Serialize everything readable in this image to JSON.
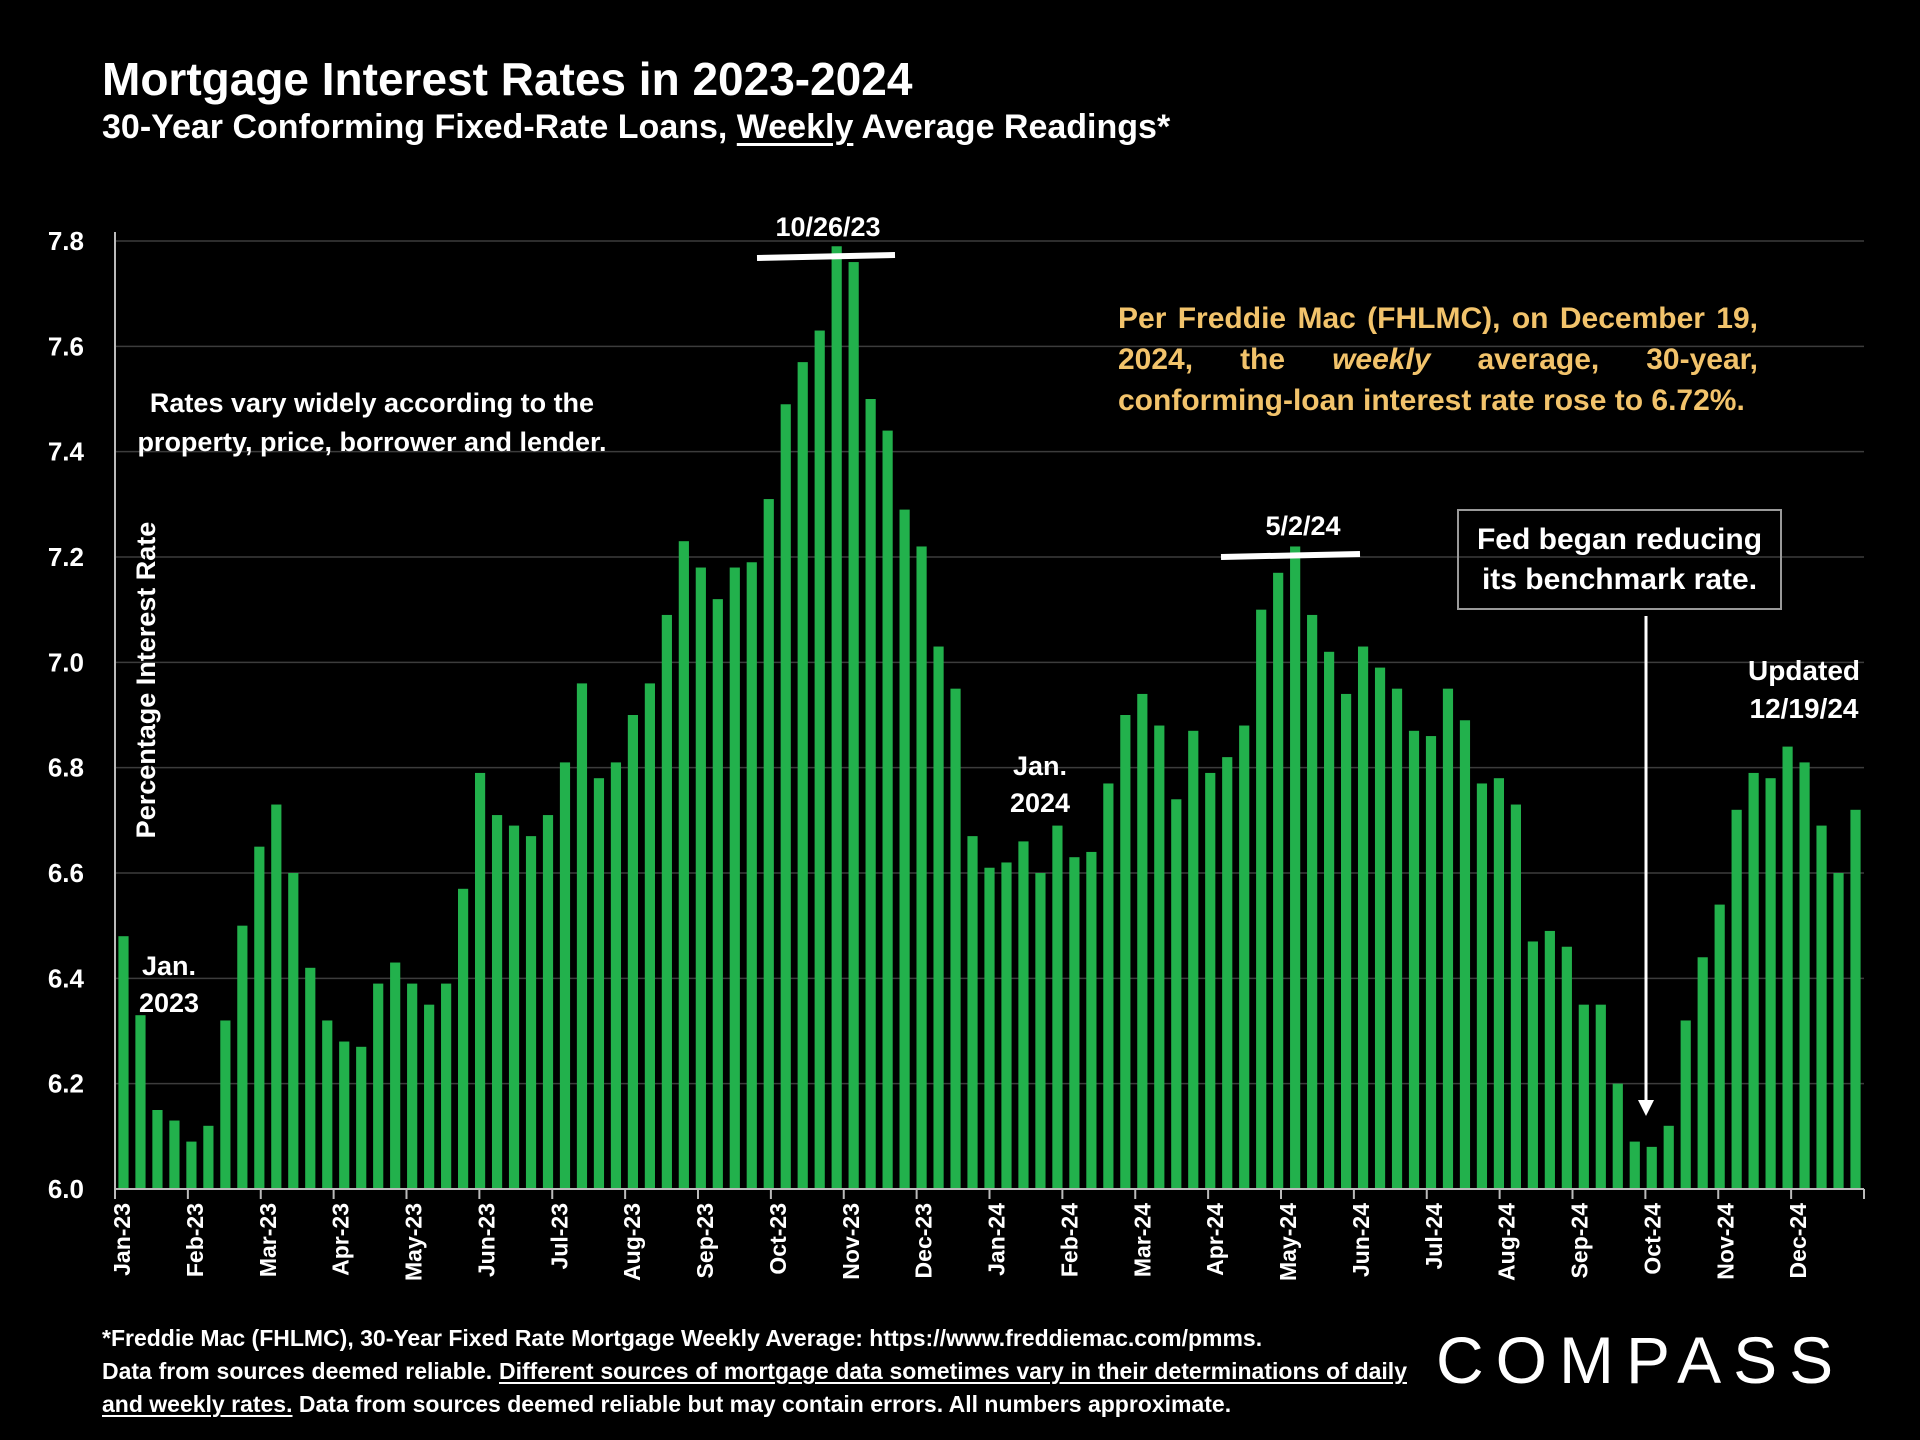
{
  "header": {
    "title": "Mortgage Interest Rates in 2023-2024",
    "subtitle_before": "30-Year Conforming Fixed-Rate Loans, ",
    "subtitle_underlined": "Weekly",
    "subtitle_after": " Average Readings*"
  },
  "annotations": {
    "rates_note": "Rates vary widely according to the property, price, borrower and lender.",
    "fhlmc_before": "Per Freddie Mac (FHLMC), on December 19, 2024, the ",
    "fhlmc_italic": "weekly",
    "fhlmc_after": " average, 30-year, conforming-loan interest rate rose to 6.72%.",
    "fed_line1": "Fed began reducing",
    "fed_line2": "its benchmark rate.",
    "updated_line1": "Updated",
    "updated_line2": "12/19/24",
    "jan2023_line1": "Jan.",
    "jan2023_line2": "2023",
    "jan2024_line1": "Jan.",
    "jan2024_line2": "2024",
    "peak1": "10/26/23",
    "peak2": "5/2/24"
  },
  "footer": {
    "line1": "*Freddie Mac (FHLMC), 30-Year Fixed Rate Mortgage Weekly Average:  https://www.freddiemac.com/pmms.",
    "line2_plain": "Data from sources deemed reliable. ",
    "line2_underlined": "Different sources of mortgage data sometimes vary in their determinations of daily and weekly rates.",
    "line2_after": " Data from sources deemed reliable but may contain errors. All numbers approximate."
  },
  "logo_text": "COMPASS",
  "colors": {
    "bar": "#22b14c",
    "background": "#000000",
    "highlight_text": "#f2c36b",
    "grid": "#3c3c3c"
  },
  "chart_data": {
    "type": "bar",
    "ylabel": "Percentage Interest  Rate",
    "ylim": [
      6.0,
      7.85
    ],
    "yticks": [
      "6.0",
      "6.2",
      "6.4",
      "6.6",
      "6.8",
      "7.0",
      "7.2",
      "7.4",
      "7.6",
      "7.8"
    ],
    "grid": true,
    "month_labels": [
      "Jan-23",
      "Feb-23",
      "Mar-23",
      "Apr-23",
      "May-23",
      "Jun-23",
      "Jul-23",
      "Aug-23",
      "Sep-23",
      "Oct-23",
      "Nov-23",
      "Dec-23",
      "Jan-24",
      "Feb-24",
      "Mar-24",
      "Apr-24",
      "May-24",
      "Jun-24",
      "Jul-24",
      "Aug-24",
      "Sep-24",
      "Oct-24",
      "Nov-24",
      "Dec-24"
    ],
    "values": [
      6.48,
      6.33,
      6.15,
      6.13,
      6.09,
      6.12,
      6.32,
      6.5,
      6.65,
      6.73,
      6.6,
      6.42,
      6.32,
      6.28,
      6.27,
      6.39,
      6.43,
      6.39,
      6.35,
      6.39,
      6.57,
      6.79,
      6.71,
      6.69,
      6.67,
      6.71,
      6.81,
      6.96,
      6.78,
      6.81,
      6.9,
      6.96,
      7.09,
      7.23,
      7.18,
      7.12,
      7.18,
      7.19,
      7.31,
      7.49,
      7.57,
      7.63,
      7.79,
      7.76,
      7.5,
      7.44,
      7.29,
      7.22,
      7.03,
      6.95,
      6.67,
      6.61,
      6.62,
      6.66,
      6.6,
      6.69,
      6.63,
      6.64,
      6.77,
      6.9,
      6.94,
      6.88,
      6.74,
      6.87,
      6.79,
      6.82,
      6.88,
      7.1,
      7.17,
      7.22,
      7.09,
      7.02,
      6.94,
      7.03,
      6.99,
      6.95,
      6.87,
      6.86,
      6.95,
      6.89,
      6.77,
      6.78,
      6.73,
      6.47,
      6.49,
      6.46,
      6.35,
      6.35,
      6.2,
      6.09,
      6.08,
      6.12,
      6.32,
      6.44,
      6.54,
      6.72,
      6.79,
      6.78,
      6.84,
      6.81,
      6.69,
      6.6,
      6.72
    ]
  }
}
